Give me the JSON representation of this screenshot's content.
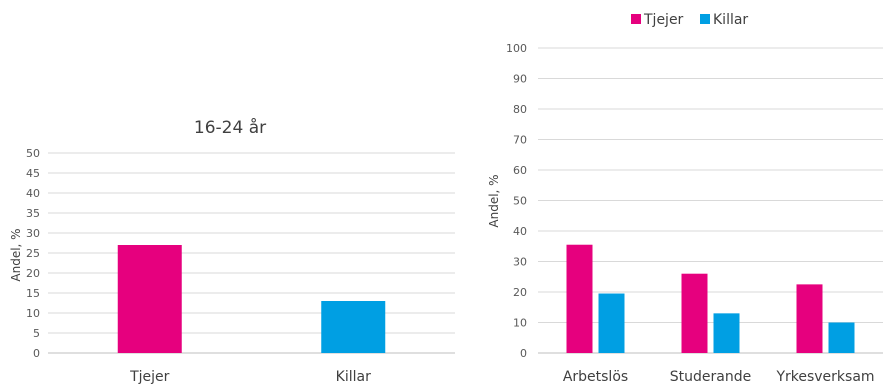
{
  "chart_data": [
    {
      "type": "bar",
      "title": "16-24 år",
      "ylabel": "Andel, %",
      "ylim": [
        0,
        50
      ],
      "yticks": [
        0,
        5,
        10,
        15,
        20,
        25,
        30,
        35,
        40,
        45,
        50
      ],
      "categories": [
        "Tjejer",
        "Killar"
      ],
      "values": [
        27,
        13
      ],
      "colors": [
        "#e6007e",
        "#009fe3"
      ],
      "grid": true
    },
    {
      "type": "bar",
      "ylabel": "Andel, %",
      "ylim": [
        0,
        100
      ],
      "yticks": [
        0,
        10,
        20,
        30,
        40,
        50,
        60,
        70,
        80,
        90,
        100
      ],
      "categories": [
        "Arbetslös",
        "Studerande",
        "Yrkesverksam"
      ],
      "series": [
        {
          "name": "Tjejer",
          "values": [
            35.5,
            26,
            22.5
          ],
          "color": "#e6007e"
        },
        {
          "name": "Killar",
          "values": [
            19.5,
            13,
            10
          ],
          "color": "#009fe3"
        }
      ],
      "legend": "top",
      "grid": true
    }
  ]
}
